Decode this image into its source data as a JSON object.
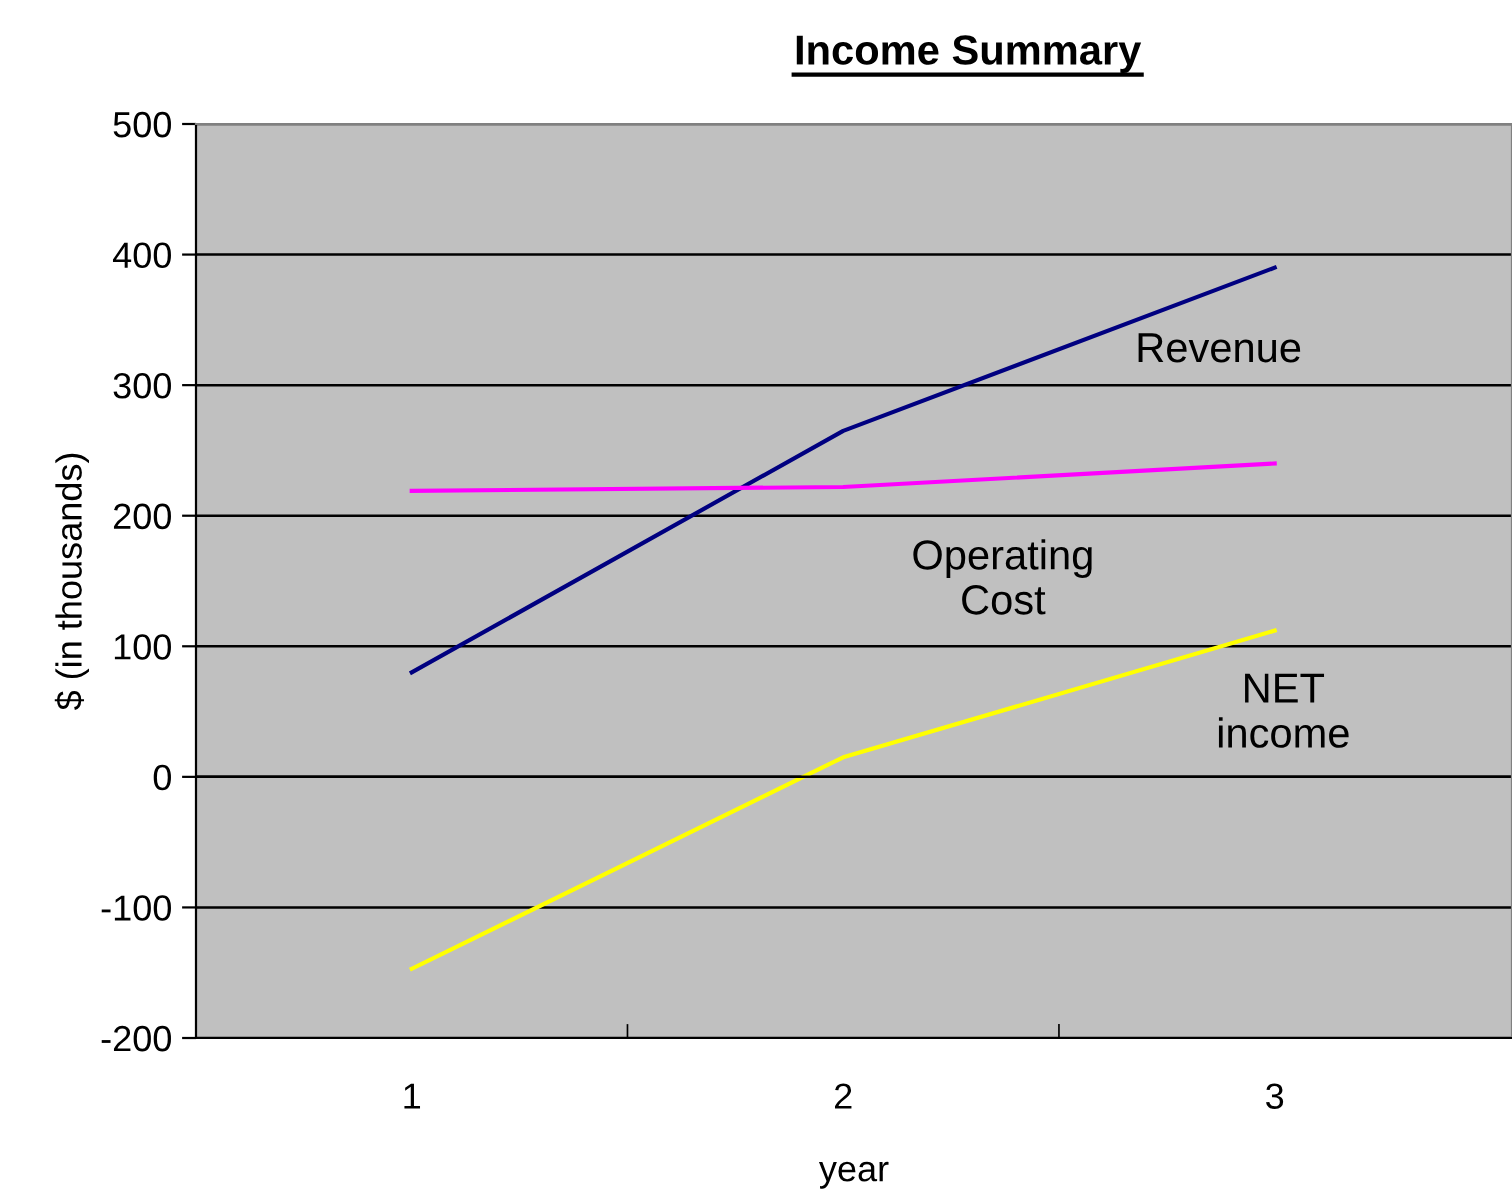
{
  "chart_data": {
    "type": "line",
    "title": "Income Summary",
    "xlabel": "year",
    "ylabel": "$ (in thousands)",
    "categories": [
      "1",
      "2",
      "3"
    ],
    "series": [
      {
        "name": "Revenue",
        "color": "#000080",
        "values": [
          80,
          265,
          390
        ]
      },
      {
        "name": "Operating\nCost",
        "color": "#ff00ff",
        "values": [
          219,
          222,
          240
        ]
      },
      {
        "name": "NET\nincome",
        "color": "#ffff00",
        "values": [
          -147,
          15,
          112
        ]
      }
    ],
    "ylim": [
      -200,
      500
    ],
    "yticks": [
      -200,
      -100,
      0,
      100,
      200,
      300,
      400,
      500
    ],
    "grid": "y",
    "legend": false,
    "marker": "none",
    "line_style": "solid"
  }
}
